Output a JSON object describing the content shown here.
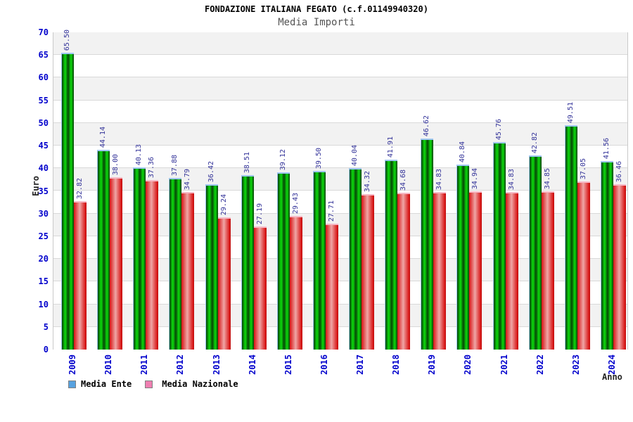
{
  "chart_data": {
    "type": "bar",
    "title": "FONDAZIONE ITALIANA FEGATO (c.f.01149940320)",
    "subtitle": "Media Importi",
    "xlabel": "Anno",
    "ylabel": "Euro",
    "ylim": [
      0,
      70
    ],
    "ytick_step": 5,
    "grid": "horizontal-bands",
    "legend_position": "bottom-left",
    "categories": [
      "2009",
      "2010",
      "2011",
      "2012",
      "2013",
      "2014",
      "2015",
      "2016",
      "2017",
      "2018",
      "2019",
      "2020",
      "2021",
      "2022",
      "2023",
      "2024"
    ],
    "series": [
      {
        "name": "Media Ente",
        "values": [
          65.5,
          44.14,
          40.13,
          37.88,
          36.42,
          38.51,
          39.12,
          39.5,
          40.04,
          41.91,
          46.62,
          40.84,
          45.76,
          42.82,
          49.51,
          41.56
        ]
      },
      {
        "name": "Media Nazionale",
        "values": [
          32.82,
          38.0,
          37.36,
          34.79,
          29.24,
          27.19,
          29.43,
          27.71,
          34.32,
          34.68,
          34.83,
          34.94,
          34.83,
          34.85,
          37.05,
          36.46
        ]
      }
    ]
  },
  "colors": {
    "media_ente_edge": "#064006",
    "media_ente_bright": "#0cdc0c",
    "media_ente_mid": "#054505",
    "media_ente_cap": "#9fc6f2",
    "media_nazionale_edge": "#d81414",
    "media_nazionale_pink": "#efa6a6",
    "media_nazionale_dark_edge": "#b81010",
    "media_nazionale_cap": "#f6b9c6",
    "legend_ente": "#58a2e0",
    "legend_nazionale": "#ef7fb1",
    "axis_text": "#0000cc",
    "value_text": "#333399",
    "title_text": "#000000",
    "subtitle_text": "#555555",
    "axis_title_text": "#222222",
    "band": "#f2f2f2",
    "grid": "#d9d9d9",
    "plot_border": "#c9c9c9"
  }
}
